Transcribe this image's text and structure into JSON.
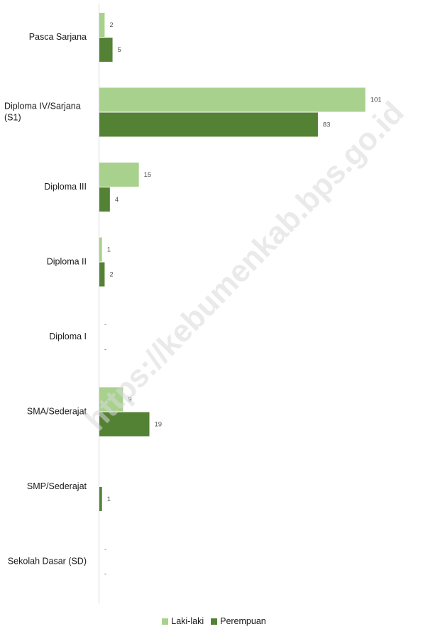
{
  "watermark": "https://kebumenkab.bps.go.id",
  "chart_data": {
    "type": "bar",
    "orientation": "horizontal",
    "categories": [
      "Pasca Sarjana",
      "Diploma IV/Sarjana (S1)",
      "Diploma III",
      "Diploma II",
      "Diploma I",
      "SMA/Sederajat",
      "SMP/Sederajat",
      "Sekolah Dasar (SD)"
    ],
    "series": [
      {
        "name": "Laki-laki",
        "color": "#a9d18e",
        "values": [
          2,
          101,
          15,
          1,
          null,
          9,
          null,
          null
        ],
        "labels": [
          "2",
          "101",
          "15",
          "1",
          "-",
          "9",
          "",
          "-"
        ]
      },
      {
        "name": "Perempuan",
        "color": "#548235",
        "values": [
          5,
          83,
          4,
          2,
          null,
          19,
          1,
          null
        ],
        "labels": [
          "5",
          "83",
          "4",
          "2",
          "-",
          "19",
          "1",
          "-"
        ]
      }
    ],
    "xlim": [
      0,
      110
    ],
    "grid": false,
    "legend_position": "bottom"
  }
}
